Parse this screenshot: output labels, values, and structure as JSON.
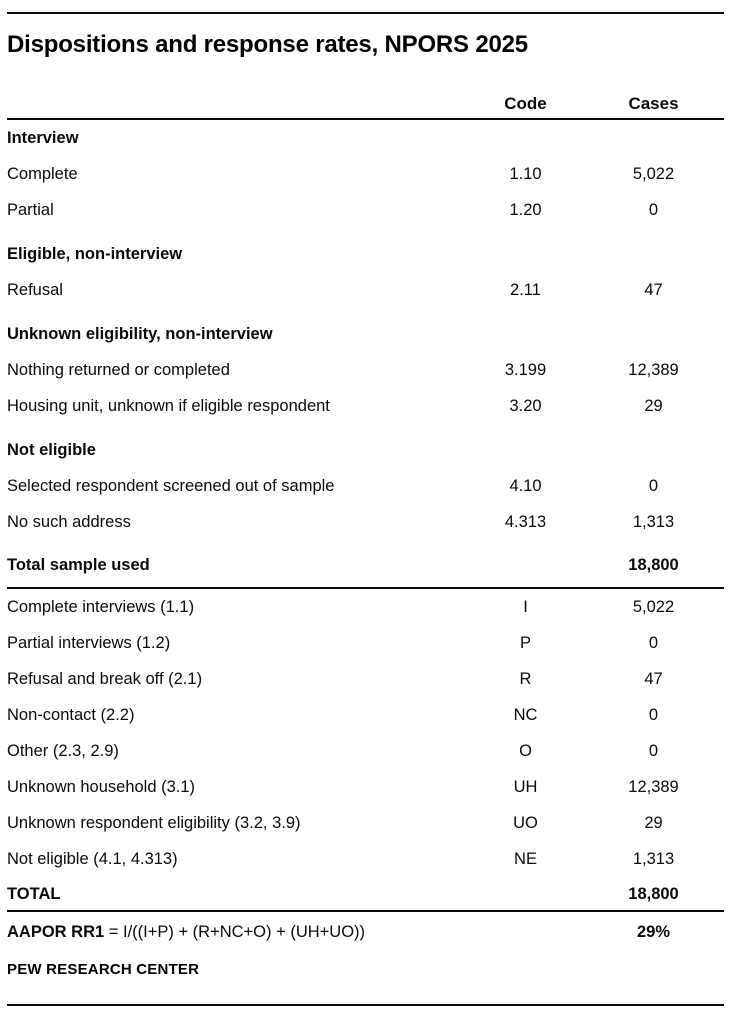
{
  "chart_data": {
    "type": "table",
    "title": "Dispositions and response rates, NPORS 2025",
    "columns": {
      "code": "Code",
      "cases": "Cases"
    },
    "disposition_sections": [
      {
        "heading": "Interview",
        "items": [
          {
            "label": "Complete",
            "code": "1.10",
            "cases": "5,022"
          },
          {
            "label": "Partial",
            "code": "1.20",
            "cases": "0"
          }
        ]
      },
      {
        "heading": "Eligible, non-interview",
        "items": [
          {
            "label": "Refusal",
            "code": "2.11",
            "cases": "47"
          }
        ]
      },
      {
        "heading": "Unknown eligibility, non-interview",
        "items": [
          {
            "label": "Nothing returned or completed",
            "code": "3.199",
            "cases": "12,389"
          },
          {
            "label": "Housing unit, unknown if eligible respondent",
            "code": "3.20",
            "cases": "29"
          }
        ]
      },
      {
        "heading": "Not eligible",
        "items": [
          {
            "label": "Selected respondent screened out of sample",
            "code": "4.10",
            "cases": "0"
          },
          {
            "label": "No such address",
            "code": "4.313",
            "cases": "1,313"
          }
        ]
      }
    ],
    "total_sample": {
      "label": "Total sample used",
      "cases": "18,800"
    },
    "aapor_rows": [
      {
        "label": "Complete interviews (1.1)",
        "code": "I",
        "cases": "5,022"
      },
      {
        "label": "Partial interviews (1.2)",
        "code": "P",
        "cases": "0"
      },
      {
        "label": "Refusal and break off (2.1)",
        "code": "R",
        "cases": "47"
      },
      {
        "label": "Non-contact (2.2)",
        "code": "NC",
        "cases": "0"
      },
      {
        "label": "Other (2.3, 2.9)",
        "code": "O",
        "cases": "0"
      },
      {
        "label": "Unknown household (3.1)",
        "code": "UH",
        "cases": "12,389"
      },
      {
        "label": "Unknown respondent eligibility (3.2, 3.9)",
        "code": "UO",
        "cases": "29"
      },
      {
        "label": "Not eligible (4.1, 4.313)",
        "code": "NE",
        "cases": "1,313"
      }
    ],
    "grand_total": {
      "label": "TOTAL",
      "cases": "18,800"
    },
    "response_rate": {
      "label": "AAPOR RR1",
      "formula": " = I/((I+P) + (R+NC+O) + (UH+UO))",
      "value": "29%"
    },
    "source": "PEW RESEARCH CENTER"
  }
}
